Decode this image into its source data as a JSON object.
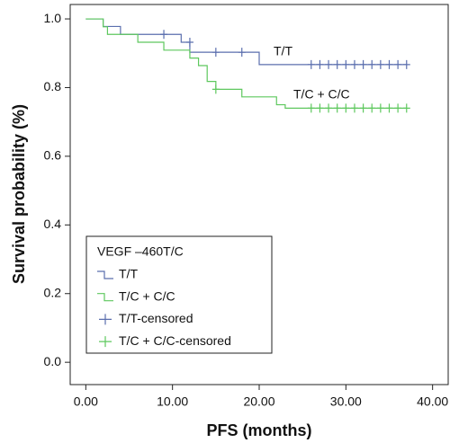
{
  "chart_data": {
    "type": "survival",
    "xlabel": "PFS (months)",
    "ylabel": "Survival probability (%)",
    "xlim": [
      -1.8,
      41.8
    ],
    "ylim": [
      -0.065,
      1.042
    ],
    "xticks": [
      {
        "value": 0,
        "label": "0.00"
      },
      {
        "value": 10,
        "label": "10.00"
      },
      {
        "value": 20,
        "label": "20.00"
      },
      {
        "value": 30,
        "label": "30.00"
      },
      {
        "value": 40,
        "label": "40.00"
      }
    ],
    "yticks": [
      {
        "value": 0,
        "label": "0.0"
      },
      0.2,
      0.4,
      0.6,
      0.8,
      {
        "value": 1,
        "label": "1.0"
      }
    ],
    "legend_title": "VEGF –460T/C",
    "annotations": [
      "T/T",
      "T/C + C/C"
    ],
    "series": [
      {
        "name": "T/T",
        "color": "#5b6fae",
        "marker": "step",
        "x": [
          0,
          2,
          4,
          11,
          12,
          20,
          37
        ],
        "values": [
          1.0,
          0.978,
          0.955,
          0.932,
          0.903,
          0.867,
          0.867
        ]
      },
      {
        "name": "T/C + C/C",
        "color": "#5ec85e",
        "marker": "step",
        "x": [
          0,
          2,
          2.5,
          6,
          9,
          12,
          13,
          14,
          15,
          18,
          22,
          23,
          37
        ],
        "values": [
          1.0,
          0.977,
          0.955,
          0.932,
          0.909,
          0.886,
          0.864,
          0.818,
          0.795,
          0.773,
          0.75,
          0.74,
          0.74
        ]
      },
      {
        "name": "T/T-censored",
        "color": "#5b6fae",
        "marker": "plus",
        "x": [
          9,
          12,
          15,
          18,
          26,
          27,
          28,
          29,
          30,
          31,
          32,
          33,
          34,
          35,
          36,
          37
        ],
        "values": [
          0.955,
          0.932,
          0.903,
          0.903,
          0.867,
          0.867,
          0.867,
          0.867,
          0.867,
          0.867,
          0.867,
          0.867,
          0.867,
          0.867,
          0.867,
          0.867
        ]
      },
      {
        "name": "T/C + C/C-censored",
        "color": "#5ec85e",
        "marker": "plus",
        "x": [
          15,
          26,
          27,
          28,
          29,
          30,
          31,
          32,
          33,
          34,
          35,
          36,
          37
        ],
        "values": [
          0.795,
          0.74,
          0.74,
          0.74,
          0.74,
          0.74,
          0.74,
          0.74,
          0.74,
          0.74,
          0.74,
          0.74,
          0.74
        ]
      }
    ]
  }
}
